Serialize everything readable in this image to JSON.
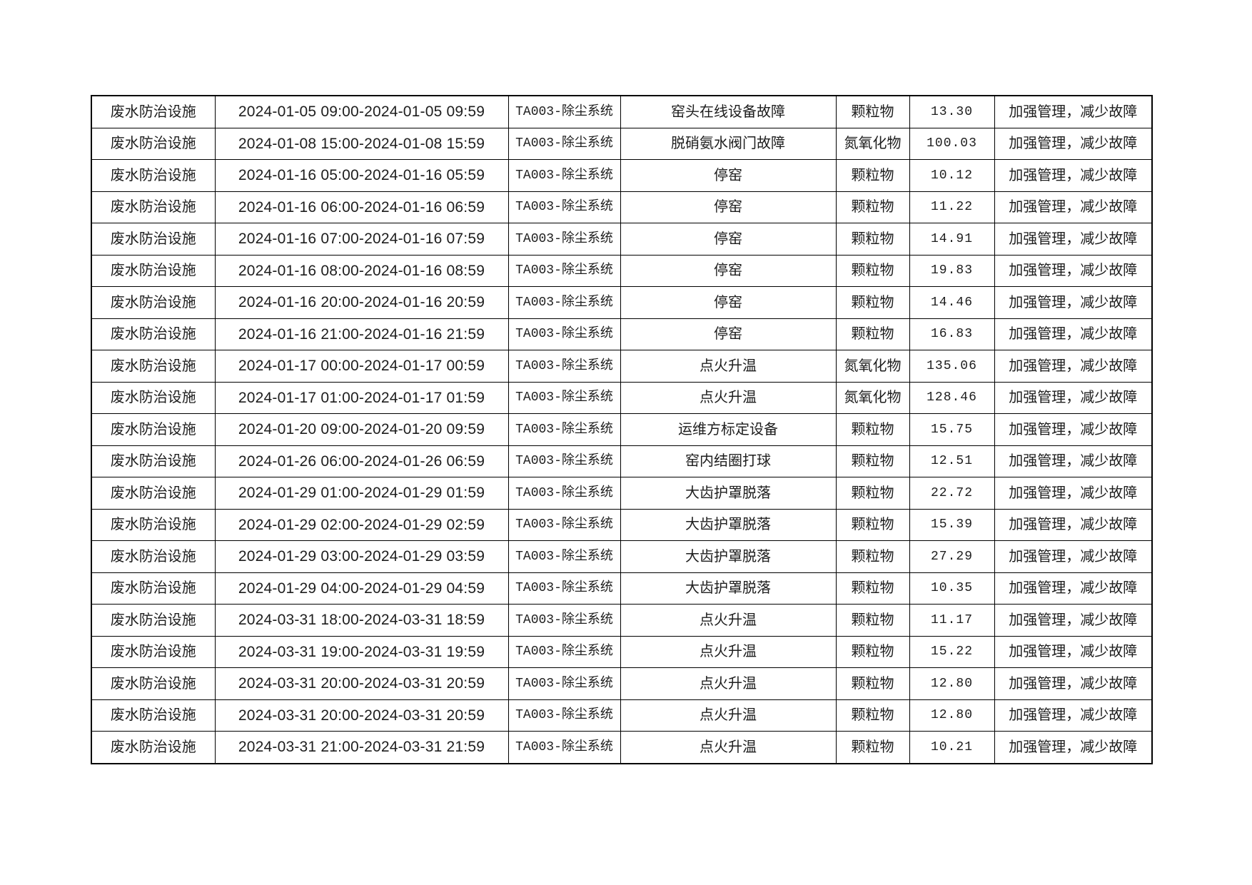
{
  "page": {
    "background": "#ffffff",
    "text_color": "#1d1d1d",
    "border_color": "#000000"
  },
  "table": {
    "column_keys": [
      "facility",
      "time_range",
      "device",
      "fault_reason",
      "pollutant",
      "value",
      "measure"
    ],
    "rows": [
      [
        "废水防治设施",
        "2024-01-05 09:00-2024-01-05 09:59",
        "TA003-除尘系统",
        "窑头在线设备故障",
        "颗粒物",
        "13.30",
        "加强管理，减少故障"
      ],
      [
        "废水防治设施",
        "2024-01-08 15:00-2024-01-08 15:59",
        "TA003-除尘系统",
        "脱硝氨水阀门故障",
        "氮氧化物",
        "100.03",
        "加强管理，减少故障"
      ],
      [
        "废水防治设施",
        "2024-01-16 05:00-2024-01-16 05:59",
        "TA003-除尘系统",
        "停窑",
        "颗粒物",
        "10.12",
        "加强管理，减少故障"
      ],
      [
        "废水防治设施",
        "2024-01-16 06:00-2024-01-16 06:59",
        "TA003-除尘系统",
        "停窑",
        "颗粒物",
        "11.22",
        "加强管理，减少故障"
      ],
      [
        "废水防治设施",
        "2024-01-16 07:00-2024-01-16 07:59",
        "TA003-除尘系统",
        "停窑",
        "颗粒物",
        "14.91",
        "加强管理，减少故障"
      ],
      [
        "废水防治设施",
        "2024-01-16 08:00-2024-01-16 08:59",
        "TA003-除尘系统",
        "停窑",
        "颗粒物",
        "19.83",
        "加强管理，减少故障"
      ],
      [
        "废水防治设施",
        "2024-01-16 20:00-2024-01-16 20:59",
        "TA003-除尘系统",
        "停窑",
        "颗粒物",
        "14.46",
        "加强管理，减少故障"
      ],
      [
        "废水防治设施",
        "2024-01-16 21:00-2024-01-16 21:59",
        "TA003-除尘系统",
        "停窑",
        "颗粒物",
        "16.83",
        "加强管理，减少故障"
      ],
      [
        "废水防治设施",
        "2024-01-17 00:00-2024-01-17 00:59",
        "TA003-除尘系统",
        "点火升温",
        "氮氧化物",
        "135.06",
        "加强管理，减少故障"
      ],
      [
        "废水防治设施",
        "2024-01-17 01:00-2024-01-17 01:59",
        "TA003-除尘系统",
        "点火升温",
        "氮氧化物",
        "128.46",
        "加强管理，减少故障"
      ],
      [
        "废水防治设施",
        "2024-01-20 09:00-2024-01-20 09:59",
        "TA003-除尘系统",
        "运维方标定设备",
        "颗粒物",
        "15.75",
        "加强管理，减少故障"
      ],
      [
        "废水防治设施",
        "2024-01-26 06:00-2024-01-26 06:59",
        "TA003-除尘系统",
        "窑内结圈打球",
        "颗粒物",
        "12.51",
        "加强管理，减少故障"
      ],
      [
        "废水防治设施",
        "2024-01-29 01:00-2024-01-29 01:59",
        "TA003-除尘系统",
        "大齿护罩脱落",
        "颗粒物",
        "22.72",
        "加强管理，减少故障"
      ],
      [
        "废水防治设施",
        "2024-01-29 02:00-2024-01-29 02:59",
        "TA003-除尘系统",
        "大齿护罩脱落",
        "颗粒物",
        "15.39",
        "加强管理，减少故障"
      ],
      [
        "废水防治设施",
        "2024-01-29 03:00-2024-01-29 03:59",
        "TA003-除尘系统",
        "大齿护罩脱落",
        "颗粒物",
        "27.29",
        "加强管理，减少故障"
      ],
      [
        "废水防治设施",
        "2024-01-29 04:00-2024-01-29 04:59",
        "TA003-除尘系统",
        "大齿护罩脱落",
        "颗粒物",
        "10.35",
        "加强管理，减少故障"
      ],
      [
        "废水防治设施",
        "2024-03-31 18:00-2024-03-31 18:59",
        "TA003-除尘系统",
        "点火升温",
        "颗粒物",
        "11.17",
        "加强管理，减少故障"
      ],
      [
        "废水防治设施",
        "2024-03-31 19:00-2024-03-31 19:59",
        "TA003-除尘系统",
        "点火升温",
        "颗粒物",
        "15.22",
        "加强管理，减少故障"
      ],
      [
        "废水防治设施",
        "2024-03-31 20:00-2024-03-31 20:59",
        "TA003-除尘系统",
        "点火升温",
        "颗粒物",
        "12.80",
        "加强管理，减少故障"
      ],
      [
        "废水防治设施",
        "2024-03-31 20:00-2024-03-31 20:59",
        "TA003-除尘系统",
        "点火升温",
        "颗粒物",
        "12.80",
        "加强管理，减少故障"
      ],
      [
        "废水防治设施",
        "2024-03-31 21:00-2024-03-31 21:59",
        "TA003-除尘系统",
        "点火升温",
        "颗粒物",
        "10.21",
        "加强管理，减少故障"
      ]
    ]
  }
}
